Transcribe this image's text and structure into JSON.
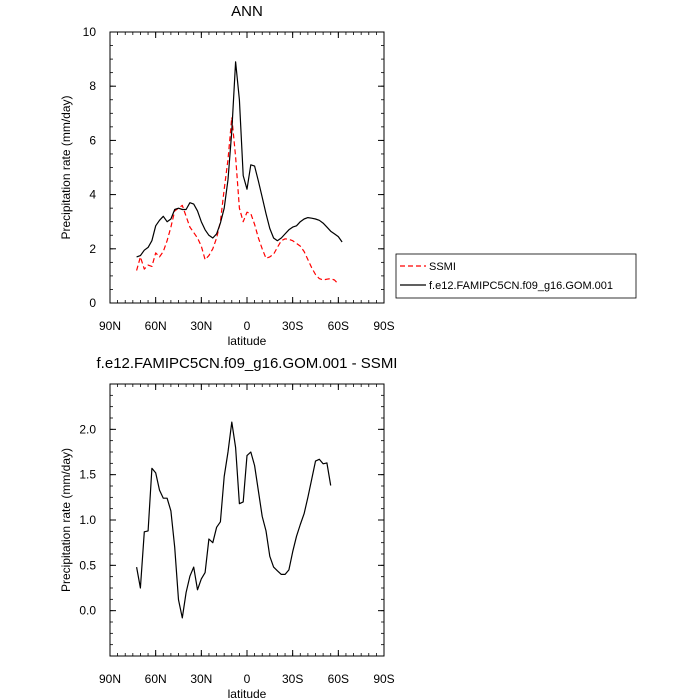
{
  "chart_data": [
    {
      "type": "line",
      "title": "ANN",
      "xlabel": "latitude",
      "ylabel": "Precipitation rate (mm/day)",
      "xlim": [
        -90,
        90
      ],
      "ylim": [
        0,
        10
      ],
      "x_reversed": true,
      "x_ticks": [
        -90,
        -60,
        -30,
        0,
        30,
        60,
        90
      ],
      "x_tick_labels": [
        "90S",
        "60S",
        "30S",
        "0",
        "30N",
        "60N",
        "90N"
      ],
      "y_ticks": [
        0,
        2,
        4,
        6,
        8,
        10
      ],
      "y_tick_labels": [
        "0",
        "2",
        "4",
        "6",
        "8",
        "10"
      ],
      "legend_position": "right",
      "series": [
        {
          "name": "SSMI",
          "color": "#ff0000",
          "style": "dashed",
          "points": [
            [
              72.5,
              1.2
            ],
            [
              70,
              1.7
            ],
            [
              67.5,
              1.25
            ],
            [
              65,
              1.4
            ],
            [
              62.5,
              1.35
            ],
            [
              60,
              1.85
            ],
            [
              57.5,
              1.7
            ],
            [
              55,
              1.9
            ],
            [
              52.5,
              2.3
            ],
            [
              50,
              2.8
            ],
            [
              47.5,
              3.4
            ],
            [
              45,
              3.5
            ],
            [
              42.5,
              3.6
            ],
            [
              40,
              3.2
            ],
            [
              37.5,
              2.8
            ],
            [
              35,
              2.6
            ],
            [
              32.5,
              2.4
            ],
            [
              30,
              2.1
            ],
            [
              27.5,
              1.6
            ],
            [
              25,
              1.75
            ],
            [
              22.5,
              2.0
            ],
            [
              20,
              2.4
            ],
            [
              17.5,
              3.0
            ],
            [
              15,
              4.2
            ],
            [
              12.5,
              5.3
            ],
            [
              10,
              6.85
            ],
            [
              7.5,
              5.4
            ],
            [
              5,
              3.5
            ],
            [
              2.5,
              3.0
            ],
            [
              0,
              3.35
            ],
            [
              -2.5,
              3.3
            ],
            [
              -5,
              2.9
            ],
            [
              -7.5,
              2.4
            ],
            [
              -10,
              2.0
            ],
            [
              -12.5,
              1.65
            ],
            [
              -15,
              1.7
            ],
            [
              -17.5,
              1.8
            ],
            [
              -20,
              2.05
            ],
            [
              -22.5,
              2.3
            ],
            [
              -25,
              2.37
            ],
            [
              -27.5,
              2.35
            ],
            [
              -30,
              2.3
            ],
            [
              -32.5,
              2.2
            ],
            [
              -35,
              2.1
            ],
            [
              -37.5,
              1.9
            ],
            [
              -40,
              1.6
            ],
            [
              -42.5,
              1.3
            ],
            [
              -45,
              1.05
            ],
            [
              -47.5,
              0.9
            ],
            [
              -50,
              0.85
            ],
            [
              -52.5,
              0.88
            ],
            [
              -55,
              0.9
            ],
            [
              -57.5,
              0.85
            ],
            [
              -60,
              0.7
            ]
          ]
        },
        {
          "name": "f.e12.FAMIPC5CN.f09_g16.GOM.001",
          "color": "#000000",
          "style": "solid",
          "points": [
            [
              72.5,
              1.7
            ],
            [
              70,
              1.75
            ],
            [
              67.5,
              1.95
            ],
            [
              65,
              2.05
            ],
            [
              62.5,
              2.3
            ],
            [
              60,
              2.85
            ],
            [
              57.5,
              3.05
            ],
            [
              55,
              3.2
            ],
            [
              52.5,
              3.0
            ],
            [
              50,
              3.1
            ],
            [
              47.5,
              3.45
            ],
            [
              45,
              3.5
            ],
            [
              42.5,
              3.45
            ],
            [
              40,
              3.45
            ],
            [
              37.5,
              3.7
            ],
            [
              35,
              3.65
            ],
            [
              32.5,
              3.4
            ],
            [
              30,
              3.0
            ],
            [
              27.5,
              2.7
            ],
            [
              25,
              2.5
            ],
            [
              22.5,
              2.4
            ],
            [
              20,
              2.55
            ],
            [
              17.5,
              2.95
            ],
            [
              15,
              3.5
            ],
            [
              12.5,
              4.55
            ],
            [
              10,
              6.35
            ],
            [
              7.5,
              8.9
            ],
            [
              5,
              7.5
            ],
            [
              2.5,
              4.7
            ],
            [
              0,
              4.2
            ],
            [
              -2.5,
              5.1
            ],
            [
              -5,
              5.05
            ],
            [
              -7.5,
              4.5
            ],
            [
              -10,
              3.9
            ],
            [
              -12.5,
              3.3
            ],
            [
              -15,
              2.75
            ],
            [
              -17.5,
              2.4
            ],
            [
              -20,
              2.3
            ],
            [
              -22.5,
              2.4
            ],
            [
              -25,
              2.55
            ],
            [
              -27.5,
              2.7
            ],
            [
              -30,
              2.8
            ],
            [
              -32.5,
              2.85
            ],
            [
              -35,
              3.0
            ],
            [
              -37.5,
              3.1
            ],
            [
              -40,
              3.15
            ],
            [
              -42.5,
              3.13
            ],
            [
              -45,
              3.1
            ],
            [
              -47.5,
              3.05
            ],
            [
              -50,
              2.95
            ],
            [
              -52.5,
              2.8
            ],
            [
              -55,
              2.65
            ],
            [
              -57.5,
              2.55
            ],
            [
              -60,
              2.45
            ],
            [
              -62.5,
              2.25
            ]
          ]
        }
      ]
    },
    {
      "type": "line",
      "title": "f.e12.FAMIPC5CN.f09_g16.GOM.001 - SSMI",
      "xlabel": "latitude",
      "ylabel": "Precipitation rate (mm/day)",
      "xlim": [
        -90,
        90
      ],
      "ylim": [
        -0.5,
        2.5
      ],
      "x_reversed": true,
      "x_ticks": [
        -90,
        -60,
        -30,
        0,
        30,
        60,
        90
      ],
      "x_tick_labels": [
        "90S",
        "60S",
        "30S",
        "0",
        "30N",
        "60N",
        "90N"
      ],
      "y_ticks": [
        0,
        0.5,
        1,
        1.5,
        2
      ],
      "y_tick_labels": [
        "0.0",
        "0.5",
        "1.0",
        "1.5",
        "2.0"
      ],
      "series": [
        {
          "color": "#000000",
          "style": "solid",
          "points": [
            [
              72.5,
              0.48
            ],
            [
              70,
              0.25
            ],
            [
              67.5,
              0.87
            ],
            [
              65,
              0.88
            ],
            [
              62.5,
              1.57
            ],
            [
              60,
              1.52
            ],
            [
              57.5,
              1.33
            ],
            [
              55,
              1.24
            ],
            [
              52.5,
              1.24
            ],
            [
              50,
              1.1
            ],
            [
              47.5,
              0.7
            ],
            [
              45,
              0.12
            ],
            [
              42.5,
              -0.08
            ],
            [
              40,
              0.2
            ],
            [
              37.5,
              0.38
            ],
            [
              35,
              0.48
            ],
            [
              32.5,
              0.23
            ],
            [
              30,
              0.35
            ],
            [
              27.5,
              0.42
            ],
            [
              25,
              0.79
            ],
            [
              22.5,
              0.75
            ],
            [
              20,
              0.92
            ],
            [
              17.5,
              0.98
            ],
            [
              15,
              1.48
            ],
            [
              12.5,
              1.75
            ],
            [
              10,
              2.08
            ],
            [
              7.5,
              1.8
            ],
            [
              5,
              1.18
            ],
            [
              2.5,
              1.2
            ],
            [
              0,
              1.71
            ],
            [
              -2.5,
              1.75
            ],
            [
              -5,
              1.6
            ],
            [
              -7.5,
              1.32
            ],
            [
              -10,
              1.04
            ],
            [
              -12.5,
              0.88
            ],
            [
              -15,
              0.6
            ],
            [
              -17.5,
              0.48
            ],
            [
              -20,
              0.44
            ],
            [
              -22.5,
              0.4
            ],
            [
              -25,
              0.4
            ],
            [
              -27.5,
              0.45
            ],
            [
              -30,
              0.65
            ],
            [
              -32.5,
              0.82
            ],
            [
              -35,
              0.95
            ],
            [
              -37.5,
              1.07
            ],
            [
              -40,
              1.25
            ],
            [
              -42.5,
              1.45
            ],
            [
              -45,
              1.65
            ],
            [
              -47.5,
              1.67
            ],
            [
              -50,
              1.62
            ],
            [
              -52.5,
              1.63
            ],
            [
              -55,
              1.38
            ]
          ]
        }
      ]
    }
  ]
}
